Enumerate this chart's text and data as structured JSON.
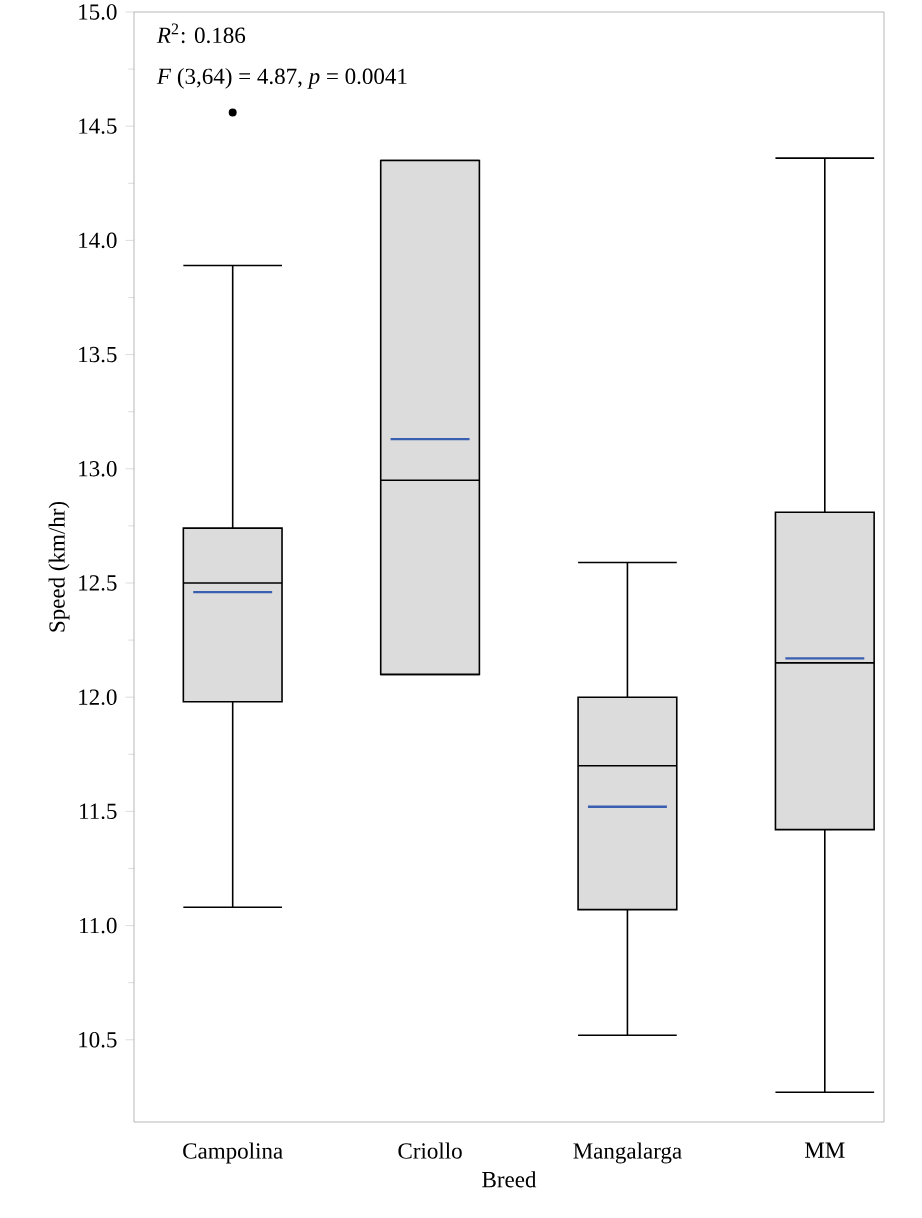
{
  "chart_data": {
    "type": "box",
    "xlabel": "Breed",
    "ylabel": "Speed (km/hr)",
    "categories": [
      "Campolina",
      "Criollo",
      "Mangalarga",
      "MM"
    ],
    "color": "#dcdcdc",
    "boxes": [
      {
        "low": 11.08,
        "q1": 11.98,
        "median": 12.5,
        "q3": 12.74,
        "high": 13.89,
        "mean": 12.46,
        "outliers": [
          14.56
        ]
      },
      {
        "low": 12.1,
        "q1": 12.1,
        "median": 12.95,
        "q3": 14.35,
        "high": 14.35,
        "mean": 13.13
      },
      {
        "low": 10.52,
        "q1": 11.07,
        "median": 11.7,
        "q3": 12.0,
        "high": 12.59,
        "mean": 11.52
      },
      {
        "low": 10.27,
        "q1": 11.42,
        "median": 12.15,
        "q3": 12.81,
        "high": 14.36,
        "mean": 12.17
      }
    ],
    "ylim": [
      10.14,
      15.0
    ],
    "yticks": [
      10.5,
      {
        "value": 11,
        "label": "11.0"
      },
      11.5,
      {
        "value": 12,
        "label": "12.0"
      },
      12.5,
      {
        "value": 13,
        "label": "13.0"
      },
      13.5,
      {
        "value": 14,
        "label": "14.0"
      },
      14.5,
      {
        "value": 15,
        "label": "15.0"
      }
    ],
    "annotations": [
      "*R*$^{2}$: 0.186",
      "*F* (3,64) = 4.87, *p* = 0.0041"
    ]
  }
}
